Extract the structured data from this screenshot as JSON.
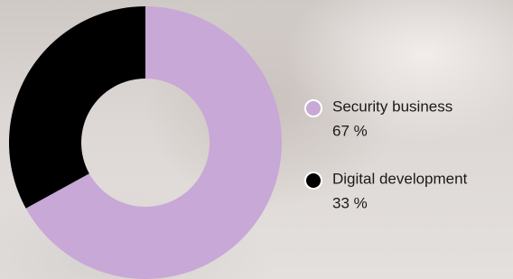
{
  "chart_data": {
    "type": "donut",
    "categories": [
      "Security business",
      "Digital development"
    ],
    "values": [
      67,
      33
    ],
    "value_labels": [
      "67 %",
      "33 %"
    ],
    "colors": [
      "#c8a8d6",
      "#000000"
    ]
  }
}
